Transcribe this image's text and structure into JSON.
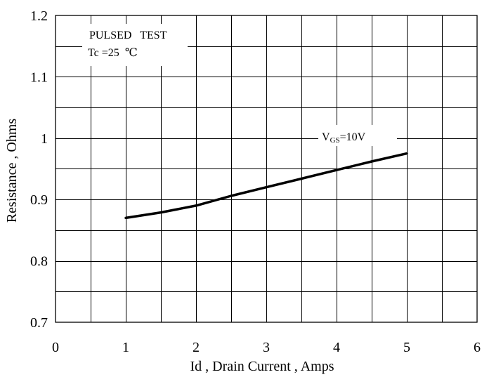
{
  "chart_data": {
    "type": "line",
    "xlabel": "Id , Drain Current , Amps",
    "ylabel": "Resistance , Ohms",
    "xlim": [
      0,
      6
    ],
    "ylim": [
      0.7,
      1.2
    ],
    "x_major_ticks": [
      0,
      1,
      2,
      3,
      4,
      5,
      6
    ],
    "x_tick_labels": [
      "0",
      "1",
      "2",
      "3",
      "4",
      "5",
      "6"
    ],
    "y_major_ticks": [
      0.7,
      0.8,
      0.9,
      1.0,
      1.1,
      1.2
    ],
    "y_tick_labels": [
      "0.7",
      "0.8",
      "0.9",
      "1",
      "1.1",
      "1.2"
    ],
    "grid": true,
    "grid_x_step": 0.5,
    "grid_y_step": 0.05,
    "annotation": {
      "line1": "PULSED   TEST",
      "line2": "Tc =25  ℃"
    },
    "series": [
      {
        "label_main": "V",
        "label_sub": "GS",
        "label_tail": "=10V",
        "x": [
          1,
          1.5,
          2,
          2.5,
          3,
          3.5,
          4,
          4.5,
          5
        ],
        "y": [
          0.87,
          0.879,
          0.89,
          0.906,
          0.92,
          0.934,
          0.948,
          0.962,
          0.975
        ]
      }
    ]
  }
}
